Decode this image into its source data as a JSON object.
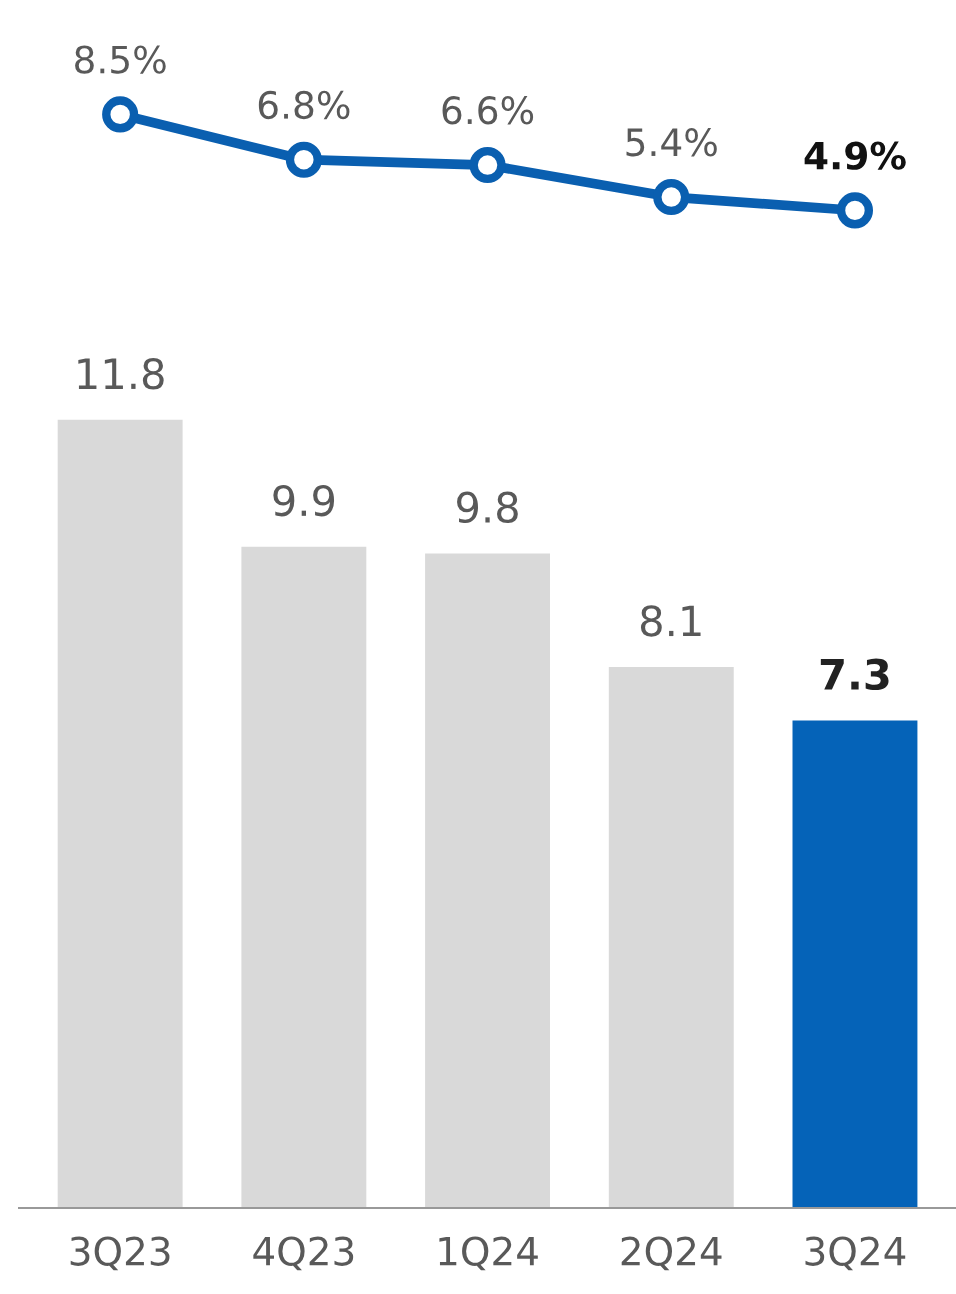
{
  "chart_data": [
    {
      "type": "line",
      "categories": [
        null,
        null,
        null,
        null,
        null
      ],
      "color": "#0a5fb0",
      "marker": "circle",
      "line_style": "solid",
      "values": [
        8.5,
        6.8,
        6.6,
        5.4,
        4.9
      ],
      "value_labels": [
        "8.5%",
        "6.8%",
        "6.6%",
        "5.4%",
        "4.9%"
      ],
      "tick_labels": false
    },
    {
      "type": "bar",
      "categories": [
        "3Q23",
        "4Q23",
        "1Q24",
        "2Q24",
        "3Q24"
      ],
      "colors": [
        "#d9d9d9",
        "#d9d9d9",
        "#d9d9d9",
        "#d9d9d9",
        "#0563b8"
      ],
      "values": [
        11.8,
        9.9,
        9.8,
        8.1,
        7.3
      ],
      "data_labels": true,
      "tick_labels": "x"
    }
  ]
}
